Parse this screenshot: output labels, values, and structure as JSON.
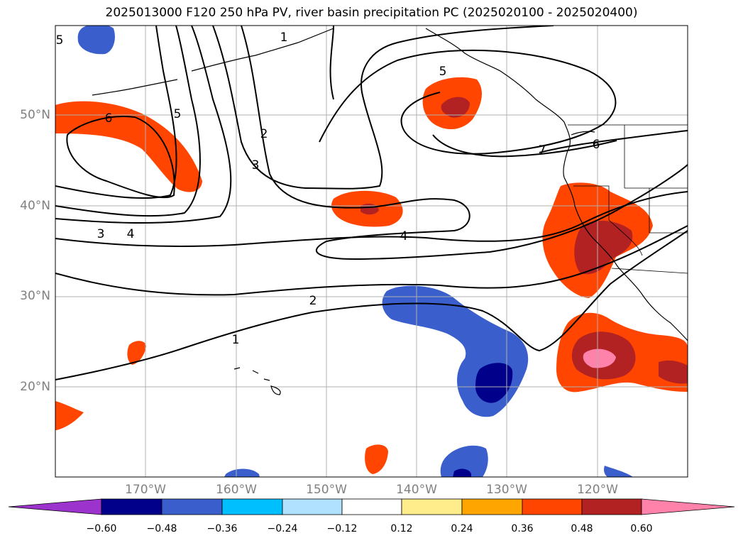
{
  "title": "2025013000 F120 250 hPa PV, river basin precipitation PC (2025020100 - 2025020400)",
  "lat_labels": [
    "50°N",
    "40°N",
    "30°N",
    "20°N"
  ],
  "lon_labels": [
    "170°W",
    "160°W",
    "150°W",
    "140°W",
    "130°W",
    "120°W"
  ],
  "colorbar": {
    "labels": [
      "−0.60",
      "−0.48",
      "−0.36",
      "−0.24",
      "−0.12",
      "0.12",
      "0.24",
      "0.36",
      "0.48",
      "0.60"
    ],
    "colors": [
      "#9b33cc",
      "#00008b",
      "#3a5fcd",
      "#00bfff",
      "#b0e2ff",
      "#ffffff",
      "#ffec8b",
      "#ffa500",
      "#ff4500",
      "#b22222",
      "#ff82ab"
    ]
  },
  "contour_labels": [
    "1",
    "2",
    "3",
    "4",
    "5",
    "6",
    "7",
    "1",
    "2",
    "3",
    "4",
    "5",
    "6"
  ]
}
